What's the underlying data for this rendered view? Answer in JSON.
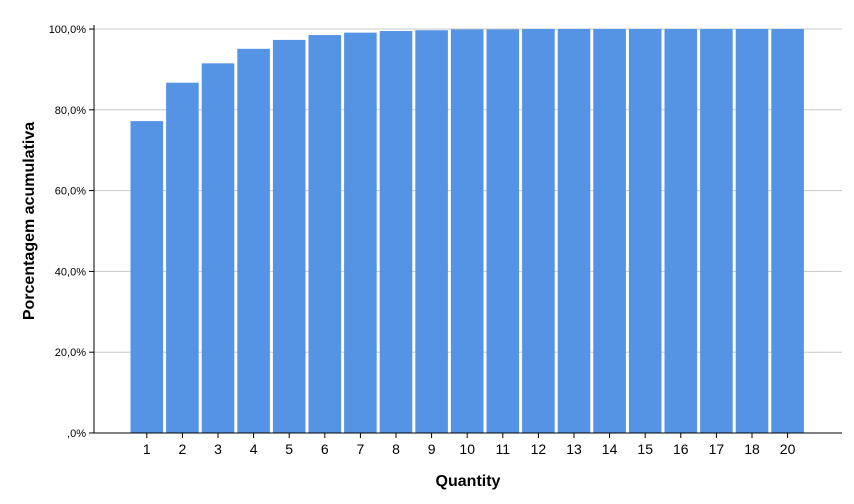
{
  "chart_data": {
    "type": "bar",
    "title": "",
    "xlabel": "Quantity",
    "ylabel": "Porcentagem acumulativa",
    "categories": [
      "1",
      "2",
      "3",
      "4",
      "5",
      "6",
      "7",
      "8",
      "9",
      "10",
      "11",
      "12",
      "13",
      "14",
      "15",
      "16",
      "17",
      "18",
      "20"
    ],
    "values": [
      77.2,
      86.7,
      91.5,
      95.1,
      97.3,
      98.5,
      99.1,
      99.5,
      99.7,
      99.9,
      99.9,
      100.0,
      100.0,
      100.0,
      100.0,
      100.0,
      100.0,
      100.0,
      100.0
    ],
    "ylim": [
      0,
      100
    ],
    "yticks": [
      0,
      20,
      40,
      60,
      80,
      100
    ],
    "ytick_labels": [
      ",0%",
      "20,0%",
      "40,0%",
      "60,0%",
      "80,0%",
      "100,0%"
    ],
    "grid": true,
    "colors": {
      "bar": "#5594e4",
      "grid": "#c8c8c8",
      "axis": "#000000"
    }
  }
}
